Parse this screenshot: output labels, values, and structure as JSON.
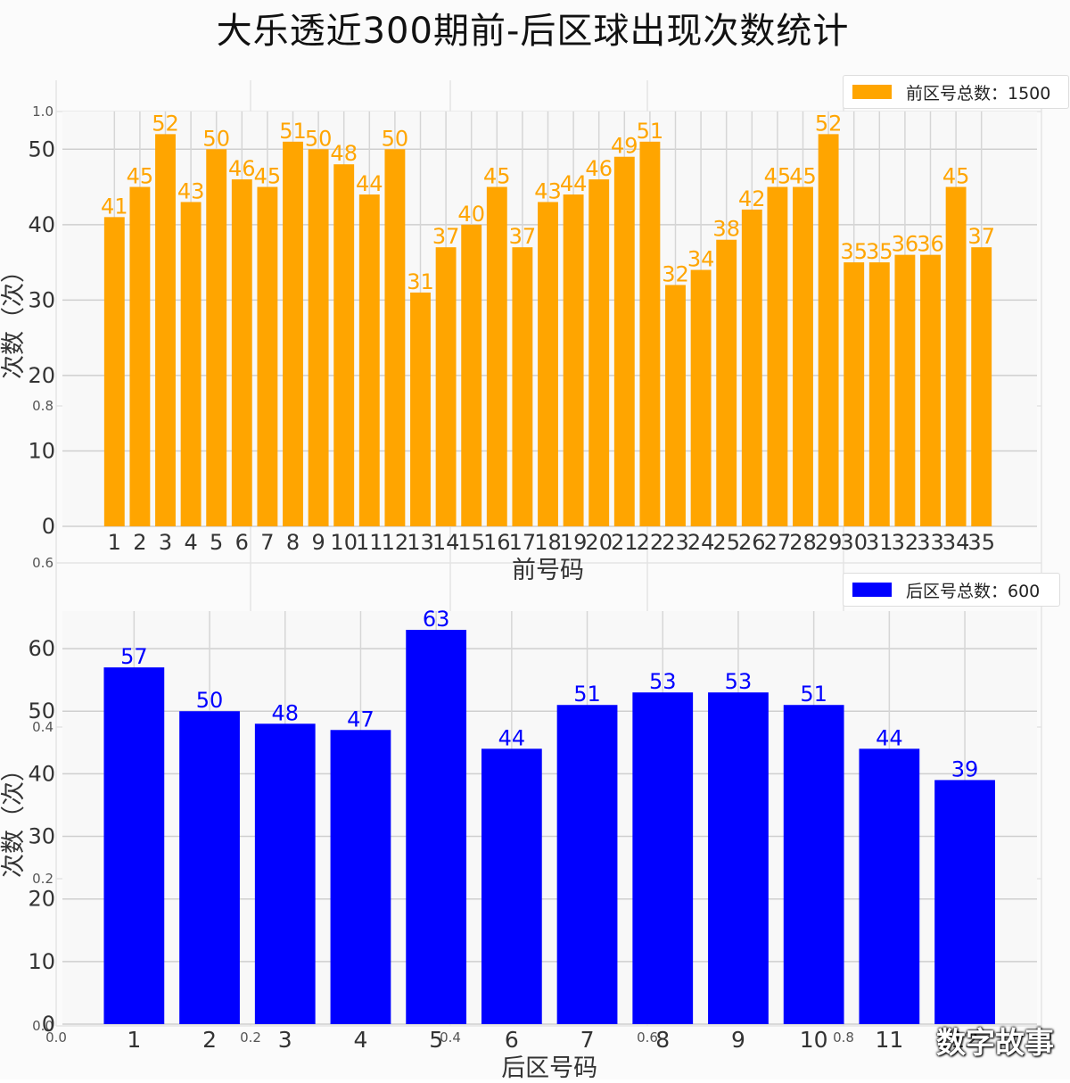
{
  "title": "大乐透近300期前-后区球出现次数统计",
  "watermark": "数字故事",
  "chart_data": [
    {
      "type": "bar",
      "color": "#ffa500",
      "xlabel": "前号码",
      "ylabel": "次数（次）",
      "legend": "前区号总数：1500",
      "legend_position": "top-right",
      "grid": true,
      "ylim": [
        0,
        55
      ],
      "yticks": [
        0,
        10,
        20,
        30,
        40,
        50
      ],
      "categories": [
        "1",
        "2",
        "3",
        "4",
        "5",
        "6",
        "7",
        "8",
        "9",
        "10",
        "11",
        "12",
        "13",
        "14",
        "15",
        "16",
        "17",
        "18",
        "19",
        "20",
        "21",
        "22",
        "23",
        "24",
        "25",
        "26",
        "27",
        "28",
        "29",
        "30",
        "31",
        "32",
        "33",
        "34",
        "35"
      ],
      "values": [
        41,
        45,
        52,
        43,
        50,
        46,
        45,
        51,
        50,
        48,
        44,
        50,
        31,
        37,
        40,
        45,
        37,
        43,
        44,
        46,
        49,
        51,
        32,
        34,
        38,
        42,
        45,
        45,
        52,
        35,
        35,
        36,
        36,
        45,
        37
      ]
    },
    {
      "type": "bar",
      "color": "#0000ff",
      "xlabel": "后区号码",
      "ylabel": "次数（次）",
      "legend": "后区号总数：600",
      "legend_position": "top-right",
      "grid": true,
      "ylim": [
        0,
        66
      ],
      "yticks": [
        0,
        10,
        20,
        30,
        40,
        50,
        60
      ],
      "categories": [
        "1",
        "2",
        "3",
        "4",
        "5",
        "6",
        "7",
        "8",
        "9",
        "10",
        "11",
        "12"
      ],
      "values": [
        57,
        50,
        48,
        47,
        63,
        44,
        51,
        53,
        53,
        51,
        44,
        39
      ]
    }
  ],
  "background_axis": {
    "xticks": [
      "0.0",
      "0.2",
      "0.4",
      "0.6",
      "0.8",
      "1.0"
    ],
    "yticks": [
      "0.0",
      "0.2",
      "0.4",
      "0.6",
      "0.8",
      "1.0"
    ]
  }
}
